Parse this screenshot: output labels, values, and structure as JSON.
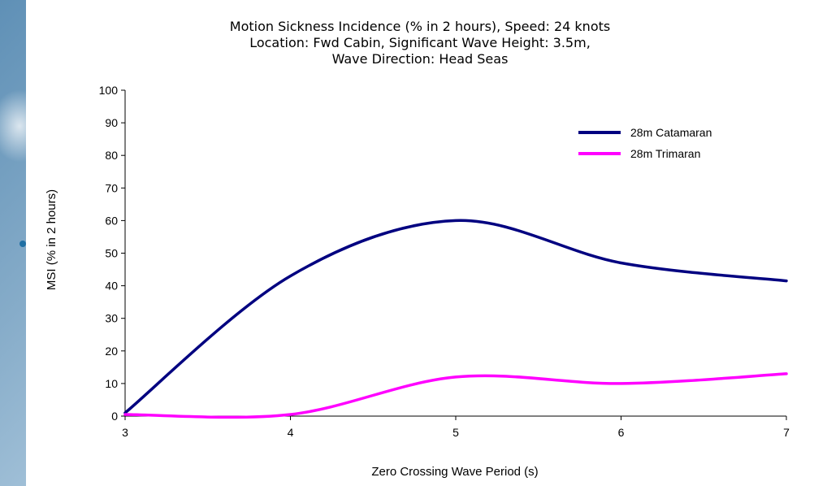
{
  "chart_data": {
    "type": "line",
    "title_lines": [
      "Motion Sickness Incidence (% in 2 hours), Speed: 24 knots",
      "Location: Fwd Cabin, Significant Wave Height: 3.5m,",
      "Wave Direction: Head Seas"
    ],
    "xlabel": "Zero Crossing Wave Period (s)",
    "ylabel": "MSI (% in 2 hours)",
    "xlim": [
      3,
      7
    ],
    "ylim": [
      0,
      100
    ],
    "x_ticks": [
      "3",
      "4",
      "5",
      "6",
      "7"
    ],
    "y_ticks": [
      "0",
      "10",
      "20",
      "30",
      "40",
      "50",
      "60",
      "70",
      "80",
      "90",
      "100"
    ],
    "legend_position": "top-right",
    "grid": false,
    "series": [
      {
        "name": "28m Catamaran",
        "color": "#000080",
        "x": [
          3,
          4,
          5,
          6,
          7
        ],
        "y": [
          1,
          43,
          60,
          47,
          41.5
        ]
      },
      {
        "name": "28m Trimaran",
        "color": "#ff00ff",
        "x": [
          3,
          4,
          5,
          6,
          7
        ],
        "y": [
          0.5,
          0.5,
          12,
          10,
          13
        ]
      }
    ]
  }
}
